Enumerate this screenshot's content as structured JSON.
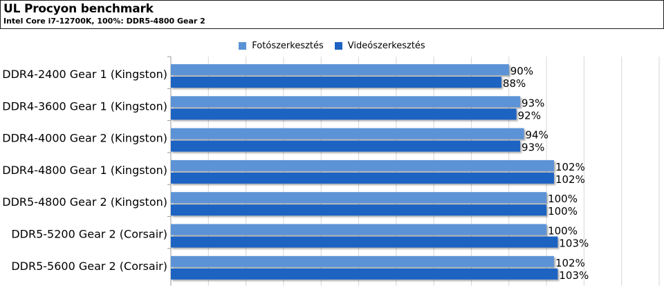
{
  "header": {
    "title": "UL Procyon benchmark",
    "subtitle": "Intel Core i7-12700K, 100%: DDR5-4800 Gear 2"
  },
  "chart_data": {
    "type": "bar",
    "orientation": "horizontal",
    "title": "UL Procyon benchmark",
    "subtitle": "Intel Core i7-12700K, 100%: DDR5-4800 Gear 2",
    "categories": [
      "DDR4-2400 Gear 1 (Kingston)",
      "DDR4-3600 Gear 1 (Kingston)",
      "DDR4-4000 Gear 2 (Kingston)",
      "DDR4-4800 Gear 1 (Kingston)",
      "DDR5-4800 Gear 2 (Kingston)",
      "DDR5-5200 Gear 2 (Corsair)",
      "DDR5-5600 Gear 2 (Corsair)"
    ],
    "series": [
      {
        "name": "Fotószerkesztés",
        "color": "#5b93d6",
        "values": [
          90,
          93,
          94,
          102,
          100,
          100,
          102
        ]
      },
      {
        "name": "Videószerkesztés",
        "color": "#1f63c2",
        "values": [
          88,
          92,
          93,
          102,
          100,
          103,
          103
        ]
      }
    ],
    "value_suffix": "%",
    "xlim": [
      0,
      130
    ],
    "grid": true,
    "legend_position": "top-center"
  }
}
